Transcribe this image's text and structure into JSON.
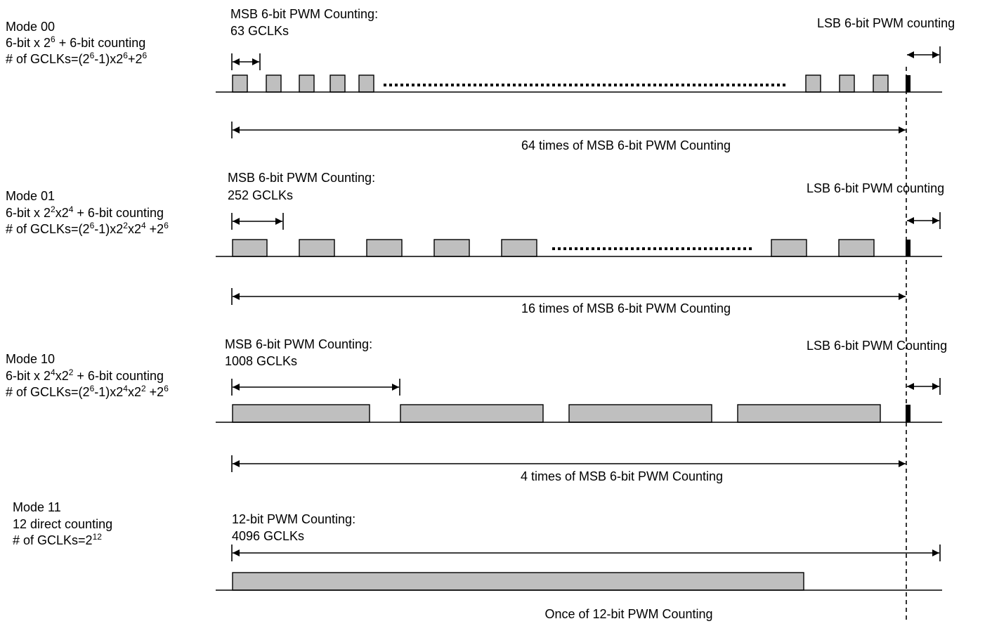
{
  "modes": [
    {
      "id": "mode-00",
      "name": "Mode 00",
      "formula": [
        {
          "t": "6-bit x 2"
        },
        {
          "s": "6"
        },
        {
          "t": " + 6-bit counting"
        }
      ],
      "gclks": [
        {
          "t": "# of GCLKs=(2"
        },
        {
          "s": "6"
        },
        {
          "t": "-1)x2"
        },
        {
          "s": "6"
        },
        {
          "t": "+2"
        },
        {
          "s": "6"
        }
      ],
      "msb_title": "MSB 6-bit PWM Counting:",
      "msb_gclks": "63 GCLKs",
      "lsb_label": "LSB 6-bit PWM counting",
      "span_label": "64 times of MSB 6-bit PWM Counting"
    },
    {
      "id": "mode-01",
      "name": "Mode 01",
      "formula": [
        {
          "t": "6-bit x 2"
        },
        {
          "s": "2"
        },
        {
          "t": "x2"
        },
        {
          "s": "4"
        },
        {
          "t": " + 6-bit counting"
        }
      ],
      "gclks": [
        {
          "t": "# of GCLKs=(2"
        },
        {
          "s": "6"
        },
        {
          "t": "-1)x2"
        },
        {
          "s": "2"
        },
        {
          "t": "x2"
        },
        {
          "s": "4"
        },
        {
          "t": " +2"
        },
        {
          "s": "6"
        }
      ],
      "msb_title": "MSB 6-bit PWM Counting:",
      "msb_gclks": "252 GCLKs",
      "lsb_label": "LSB 6-bit PWM counting",
      "span_label": "16 times of MSB 6-bit PWM Counting"
    },
    {
      "id": "mode-10",
      "name": "Mode 10",
      "formula": [
        {
          "t": "6-bit x 2"
        },
        {
          "s": "4"
        },
        {
          "t": "x2"
        },
        {
          "s": "2"
        },
        {
          "t": " + 6-bit counting"
        }
      ],
      "gclks": [
        {
          "t": "# of GCLKs=(2"
        },
        {
          "s": "6"
        },
        {
          "t": "-1)x2"
        },
        {
          "s": "4"
        },
        {
          "t": "x2"
        },
        {
          "s": "2"
        },
        {
          "t": " +2"
        },
        {
          "s": "6"
        }
      ],
      "msb_title": "MSB 6-bit PWM Counting:",
      "msb_gclks": "1008 GCLKs",
      "lsb_label": "LSB 6-bit PWM Counting",
      "span_label": "4 times of MSB 6-bit PWM Counting"
    },
    {
      "id": "mode-11",
      "name": "Mode 11",
      "formula": [
        {
          "t": "12 direct counting"
        }
      ],
      "gclks": [
        {
          "t": "# of GCLKs=2"
        },
        {
          "s": "12"
        }
      ],
      "msb_title": "12-bit PWM Counting:",
      "msb_gclks": "4096 GCLKs",
      "span_label": "Once of 12-bit PWM Counting"
    }
  ]
}
